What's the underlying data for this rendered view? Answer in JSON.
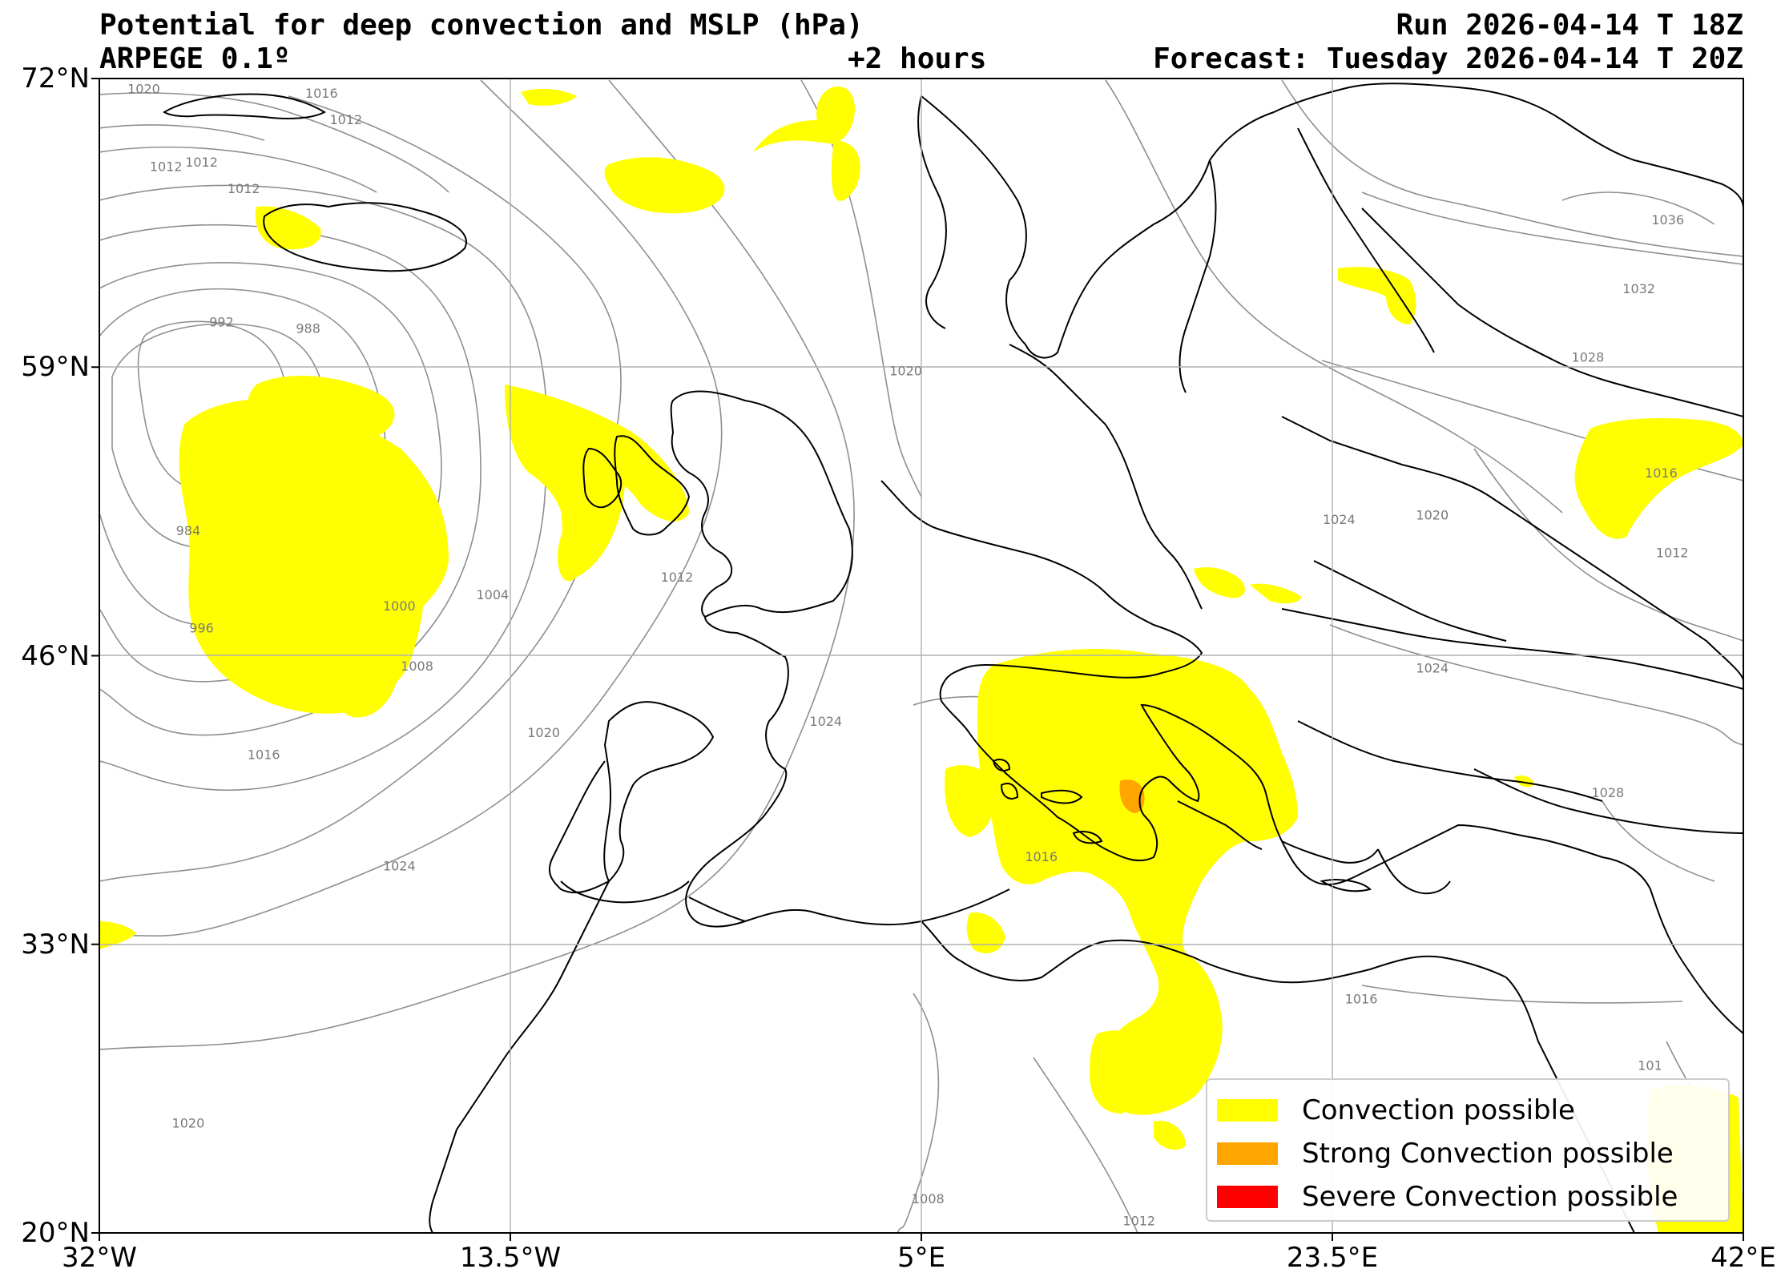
{
  "header": {
    "title_left": "Potential for deep convection and MSLP (hPa)",
    "subtitle_left": "ARPEGE 0.1º",
    "step": "+2 hours",
    "run": "Run 2026-04-14 T 18Z",
    "forecast": "Forecast: Tuesday 2026-04-14 T 20Z"
  },
  "map": {
    "lon_range": [
      -32,
      42
    ],
    "lat_range": [
      20,
      72
    ],
    "lat_ticks": [
      {
        "value": 72,
        "label": "72°N"
      },
      {
        "value": 59,
        "label": "59°N"
      },
      {
        "value": 46,
        "label": "46°N"
      },
      {
        "value": 33,
        "label": "33°N"
      },
      {
        "value": 20,
        "label": "20°N"
      }
    ],
    "lon_ticks": [
      {
        "value": -32,
        "label": "32°W"
      },
      {
        "value": -13.5,
        "label": "13.5°W"
      },
      {
        "value": 5,
        "label": "5°E"
      },
      {
        "value": 23.5,
        "label": "23.5°E"
      },
      {
        "value": 42,
        "label": "42°E"
      }
    ],
    "isobar_labels": [
      {
        "text": "1020",
        "lon": -30.0,
        "lat": 71.5
      },
      {
        "text": "1016",
        "lon": -22.0,
        "lat": 71.3
      },
      {
        "text": "1012",
        "lon": -20.9,
        "lat": 70.1
      },
      {
        "text": "1012",
        "lon": -29.0,
        "lat": 68.0
      },
      {
        "text": "1012",
        "lon": -27.4,
        "lat": 68.2
      },
      {
        "text": "1012",
        "lon": -25.5,
        "lat": 67.0
      },
      {
        "text": "992",
        "lon": -26.5,
        "lat": 61.0
      },
      {
        "text": "988",
        "lon": -22.6,
        "lat": 60.7
      },
      {
        "text": "984",
        "lon": -28.0,
        "lat": 51.6
      },
      {
        "text": "1000",
        "lon": -18.5,
        "lat": 48.2
      },
      {
        "text": "1004",
        "lon": -14.3,
        "lat": 48.7
      },
      {
        "text": "996",
        "lon": -27.4,
        "lat": 47.2
      },
      {
        "text": "1008",
        "lon": -17.7,
        "lat": 45.5
      },
      {
        "text": "1012",
        "lon": -6.0,
        "lat": 49.5
      },
      {
        "text": "1016",
        "lon": -24.6,
        "lat": 41.5
      },
      {
        "text": "1020",
        "lon": -12.0,
        "lat": 42.5
      },
      {
        "text": "1024",
        "lon": -18.5,
        "lat": 36.5
      },
      {
        "text": "1020",
        "lon": -28.0,
        "lat": 24.9
      },
      {
        "text": "1020",
        "lon": 4.3,
        "lat": 58.8
      },
      {
        "text": "1024",
        "lon": 0.7,
        "lat": 43.0
      },
      {
        "text": "1024",
        "lon": 23.8,
        "lat": 52.1
      },
      {
        "text": "1020",
        "lon": 28.0,
        "lat": 52.3
      },
      {
        "text": "1024",
        "lon": 28.0,
        "lat": 45.4
      },
      {
        "text": "1036",
        "lon": 38.6,
        "lat": 65.6
      },
      {
        "text": "1032",
        "lon": 37.3,
        "lat": 62.5
      },
      {
        "text": "1028",
        "lon": 35.0,
        "lat": 59.4
      },
      {
        "text": "1016",
        "lon": 38.3,
        "lat": 54.2
      },
      {
        "text": "1012",
        "lon": 38.8,
        "lat": 50.6
      },
      {
        "text": "1028",
        "lon": 35.9,
        "lat": 39.8
      },
      {
        "text": "1016",
        "lon": 24.8,
        "lat": 30.5
      },
      {
        "text": "1016",
        "lon": 10.4,
        "lat": 36.9
      },
      {
        "text": "1008",
        "lon": 5.3,
        "lat": 21.5
      },
      {
        "text": "1012",
        "lon": 14.8,
        "lat": 20.5
      },
      {
        "text": "101",
        "lon": 37.8,
        "lat": 27.5
      }
    ]
  },
  "legend": {
    "items": [
      {
        "label": "Convection possible",
        "color": "#ffff00"
      },
      {
        "label": "Strong Convection possible",
        "color": "#ffa500"
      },
      {
        "label": "Severe Convection possible",
        "color": "#ff0000"
      }
    ]
  }
}
